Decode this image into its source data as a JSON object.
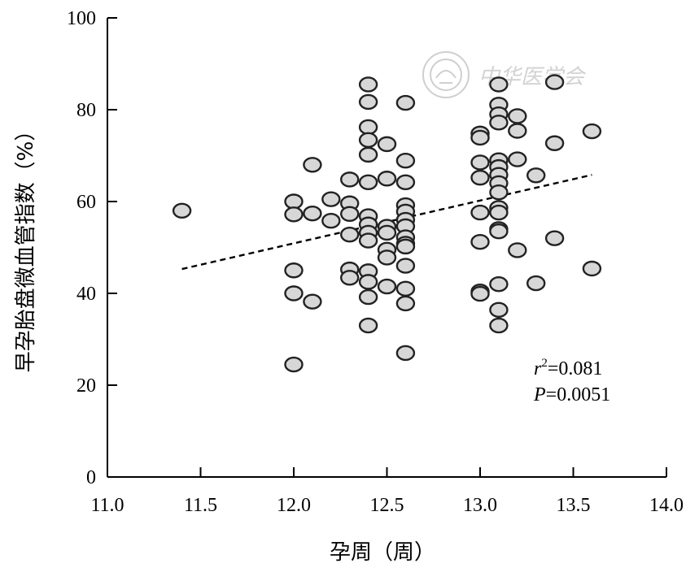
{
  "chart_data": {
    "type": "scatter",
    "xlabel": "孕周（周）",
    "ylabel": "早孕胎盘微血管指数（%）",
    "xlim": [
      11.0,
      14.0
    ],
    "ylim": [
      0,
      100
    ],
    "x_ticks": [
      "11.0",
      "11.5",
      "12.0",
      "12.5",
      "13.0",
      "13.5",
      "14.0"
    ],
    "y_ticks": [
      "0",
      "20",
      "40",
      "60",
      "80",
      "100"
    ],
    "grid": false,
    "trendline": {
      "style": "dashed",
      "x": [
        11.4,
        13.6
      ],
      "y": [
        45.3,
        65.8
      ]
    },
    "annotations": {
      "r2_symbol": "r",
      "r2_exp": "2",
      "r2_value": "=0.081",
      "p_symbol": "P",
      "p_value": "=0.0051"
    },
    "watermark": "中华医学会",
    "points": [
      [
        11.4,
        58
      ],
      [
        12.0,
        60
      ],
      [
        12.0,
        57.2
      ],
      [
        12.0,
        45
      ],
      [
        12.0,
        40
      ],
      [
        12.0,
        24.5
      ],
      [
        12.1,
        68
      ],
      [
        12.1,
        57.4
      ],
      [
        12.1,
        38.2
      ],
      [
        12.2,
        60.5
      ],
      [
        12.2,
        55.8
      ],
      [
        12.3,
        64.8
      ],
      [
        12.3,
        59.6
      ],
      [
        12.3,
        57.3
      ],
      [
        12.3,
        52.8
      ],
      [
        12.3,
        45.2
      ],
      [
        12.3,
        43.4
      ],
      [
        12.4,
        85.5
      ],
      [
        12.4,
        81.7
      ],
      [
        12.4,
        76.2
      ],
      [
        12.4,
        73.4
      ],
      [
        12.4,
        70.2
      ],
      [
        12.4,
        64.2
      ],
      [
        12.4,
        56.8
      ],
      [
        12.4,
        55
      ],
      [
        12.4,
        53.2
      ],
      [
        12.4,
        51.5
      ],
      [
        12.4,
        44.8
      ],
      [
        12.4,
        42.5
      ],
      [
        12.4,
        39.2
      ],
      [
        12.4,
        33
      ],
      [
        12.5,
        72.5
      ],
      [
        12.5,
        65
      ],
      [
        12.5,
        54.5
      ],
      [
        12.5,
        53.2
      ],
      [
        12.5,
        49.5
      ],
      [
        12.5,
        47.8
      ],
      [
        12.5,
        41.5
      ],
      [
        12.6,
        81.5
      ],
      [
        12.6,
        68.9
      ],
      [
        12.6,
        64.2
      ],
      [
        12.6,
        59.2
      ],
      [
        12.6,
        57.8
      ],
      [
        12.6,
        56
      ],
      [
        12.6,
        54.6
      ],
      [
        12.6,
        52.2
      ],
      [
        12.6,
        50.8
      ],
      [
        12.6,
        50.2
      ],
      [
        12.6,
        46
      ],
      [
        12.6,
        41
      ],
      [
        12.6,
        37.8
      ],
      [
        12.6,
        27
      ],
      [
        13.0,
        74.8
      ],
      [
        13.0,
        73.9
      ],
      [
        13.0,
        68.5
      ],
      [
        13.0,
        65.2
      ],
      [
        13.0,
        57.6
      ],
      [
        13.0,
        51.2
      ],
      [
        13.0,
        40.4
      ],
      [
        13.0,
        39.9
      ],
      [
        13.1,
        85.5
      ],
      [
        13.1,
        81.1
      ],
      [
        13.1,
        79
      ],
      [
        13.1,
        77.2
      ],
      [
        13.1,
        69
      ],
      [
        13.1,
        67.5
      ],
      [
        13.1,
        65.8
      ],
      [
        13.1,
        64
      ],
      [
        13.1,
        62
      ],
      [
        13.1,
        58.6
      ],
      [
        13.1,
        57.6
      ],
      [
        13.1,
        54
      ],
      [
        13.1,
        53.5
      ],
      [
        13.1,
        42
      ],
      [
        13.1,
        36.4
      ],
      [
        13.1,
        33
      ],
      [
        13.2,
        78.6
      ],
      [
        13.2,
        75.4
      ],
      [
        13.2,
        69.2
      ],
      [
        13.2,
        49.4
      ],
      [
        13.3,
        65.7
      ],
      [
        13.3,
        42.2
      ],
      [
        13.4,
        86
      ],
      [
        13.4,
        72.7
      ],
      [
        13.4,
        52
      ],
      [
        13.6,
        75.3
      ],
      [
        13.6,
        45.4
      ]
    ]
  }
}
